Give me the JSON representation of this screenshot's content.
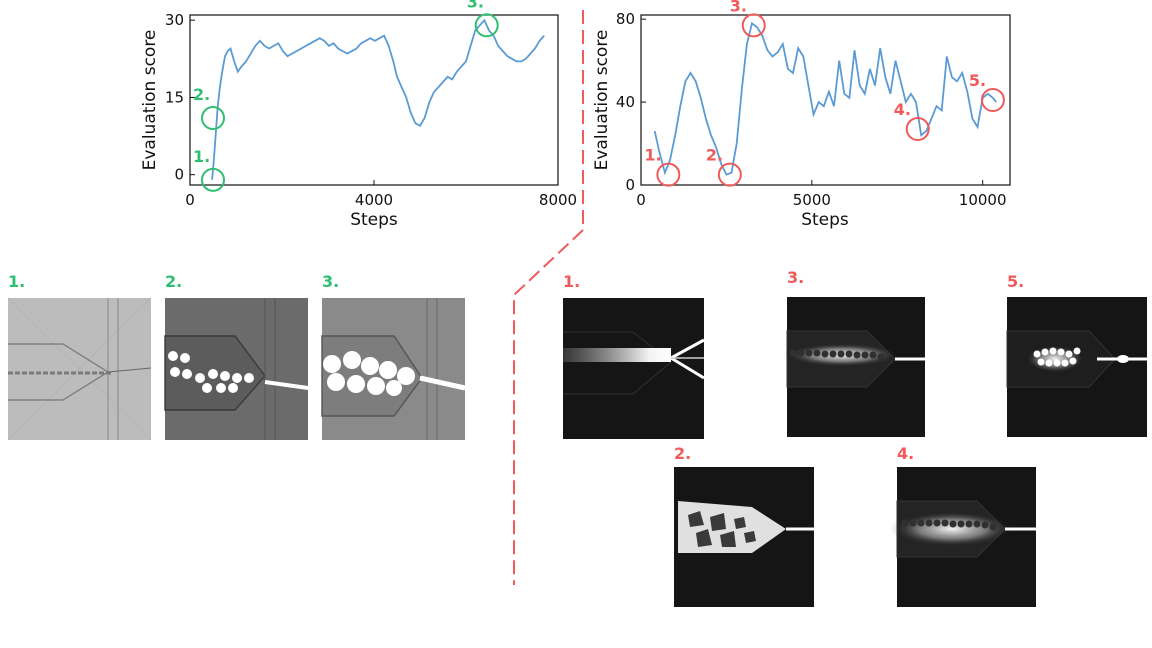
{
  "colors": {
    "line": "#5b9bd5",
    "green": "#2fbf71",
    "red": "#f05a5a",
    "axis": "#111111"
  },
  "chart_data": [
    {
      "type": "line",
      "xlabel": "Steps",
      "ylabel": "Evaluation score",
      "xlim": [
        0,
        8000
      ],
      "ylim": [
        -2,
        31
      ],
      "xticks": [
        0,
        4000,
        8000
      ],
      "yticks": [
        0,
        15,
        30
      ],
      "series": [
        {
          "x": [
            480,
            520,
            560,
            600,
            650,
            700,
            760,
            820,
            880,
            960,
            1040,
            1120,
            1220,
            1320,
            1420,
            1520,
            1620,
            1720,
            1820,
            1920,
            2020,
            2120,
            2220,
            2320,
            2420,
            2520,
            2620,
            2720,
            2820,
            2920,
            3020,
            3120,
            3220,
            3320,
            3420,
            3520,
            3620,
            3720,
            3820,
            3920,
            4020,
            4120,
            4220,
            4320,
            4420,
            4500,
            4600,
            4700,
            4800,
            4900,
            5000,
            5100,
            5200,
            5300,
            5400,
            5500,
            5600,
            5700,
            5800,
            5900,
            6000,
            6100,
            6200,
            6300,
            6400,
            6500,
            6600,
            6700,
            6800,
            6900,
            7000,
            7100,
            7200,
            7300,
            7400,
            7500,
            7600,
            7700
          ],
          "y": [
            -1,
            3,
            8,
            13,
            17,
            20,
            23,
            24,
            24.5,
            22,
            20,
            21,
            22,
            23.5,
            25,
            26,
            25,
            24.5,
            25,
            25.5,
            24,
            23,
            23.5,
            24,
            24.5,
            25,
            25.5,
            26,
            26.5,
            26,
            25,
            25.5,
            24.5,
            24,
            23.5,
            24,
            24.5,
            25.5,
            26,
            26.5,
            26,
            26.5,
            27,
            25,
            22,
            19,
            17,
            15,
            12,
            10,
            9.5,
            11,
            14,
            16,
            17,
            18,
            19,
            18.5,
            20,
            21,
            22,
            25,
            28,
            29,
            30,
            28,
            27,
            25,
            24,
            23,
            22.5,
            22,
            22,
            22.5,
            23.5,
            24.5,
            26,
            27
          ]
        }
      ],
      "markers": [
        {
          "label": "1.",
          "x": 500,
          "y": -1
        },
        {
          "label": "2.",
          "x": 500,
          "y": 11
        },
        {
          "label": "3.",
          "x": 6450,
          "y": 29
        }
      ]
    },
    {
      "type": "line",
      "xlabel": "Steps",
      "ylabel": "Evaluation score",
      "xlim": [
        0,
        10800
      ],
      "ylim": [
        0,
        82
      ],
      "xticks": [
        0,
        5000,
        10000
      ],
      "yticks": [
        0,
        40,
        80
      ],
      "series": [
        {
          "x": [
            400,
            550,
            700,
            850,
            1000,
            1150,
            1300,
            1450,
            1600,
            1750,
            1900,
            2050,
            2200,
            2350,
            2500,
            2650,
            2800,
            2950,
            3100,
            3250,
            3400,
            3550,
            3700,
            3850,
            4000,
            4150,
            4300,
            4450,
            4600,
            4750,
            4900,
            5050,
            5200,
            5350,
            5500,
            5650,
            5800,
            5950,
            6100,
            6250,
            6400,
            6550,
            6700,
            6850,
            7000,
            7150,
            7300,
            7450,
            7600,
            7750,
            7900,
            8050,
            8200,
            8350,
            8500,
            8650,
            8800,
            8950,
            9100,
            9250,
            9400,
            9550,
            9700,
            9850,
            10000,
            10150,
            10300,
            10400
          ],
          "y": [
            26,
            15,
            6,
            12,
            24,
            38,
            50,
            54,
            50,
            42,
            32,
            24,
            18,
            10,
            5,
            6,
            20,
            46,
            68,
            78,
            76,
            72,
            65,
            62,
            64,
            68,
            56,
            54,
            66,
            62,
            48,
            34,
            40,
            38,
            45,
            38,
            60,
            44,
            42,
            65,
            48,
            44,
            56,
            48,
            66,
            52,
            44,
            60,
            50,
            40,
            44,
            40,
            24,
            26,
            32,
            38,
            36,
            62,
            52,
            50,
            54,
            45,
            32,
            28,
            42,
            44,
            42,
            40
          ]
        }
      ],
      "markers": [
        {
          "label": "1.",
          "x": 800,
          "y": 5
        },
        {
          "label": "2.",
          "x": 2600,
          "y": 5
        },
        {
          "label": "3.",
          "x": 3300,
          "y": 77
        },
        {
          "label": "4.",
          "x": 8100,
          "y": 27
        },
        {
          "label": "5.",
          "x": 10300,
          "y": 41
        }
      ]
    }
  ],
  "frames": {
    "left": [
      {
        "label": "1."
      },
      {
        "label": "2."
      },
      {
        "label": "3."
      }
    ],
    "right": [
      {
        "label": "1."
      },
      {
        "label": "2."
      },
      {
        "label": "3."
      },
      {
        "label": "4."
      },
      {
        "label": "5."
      }
    ]
  }
}
